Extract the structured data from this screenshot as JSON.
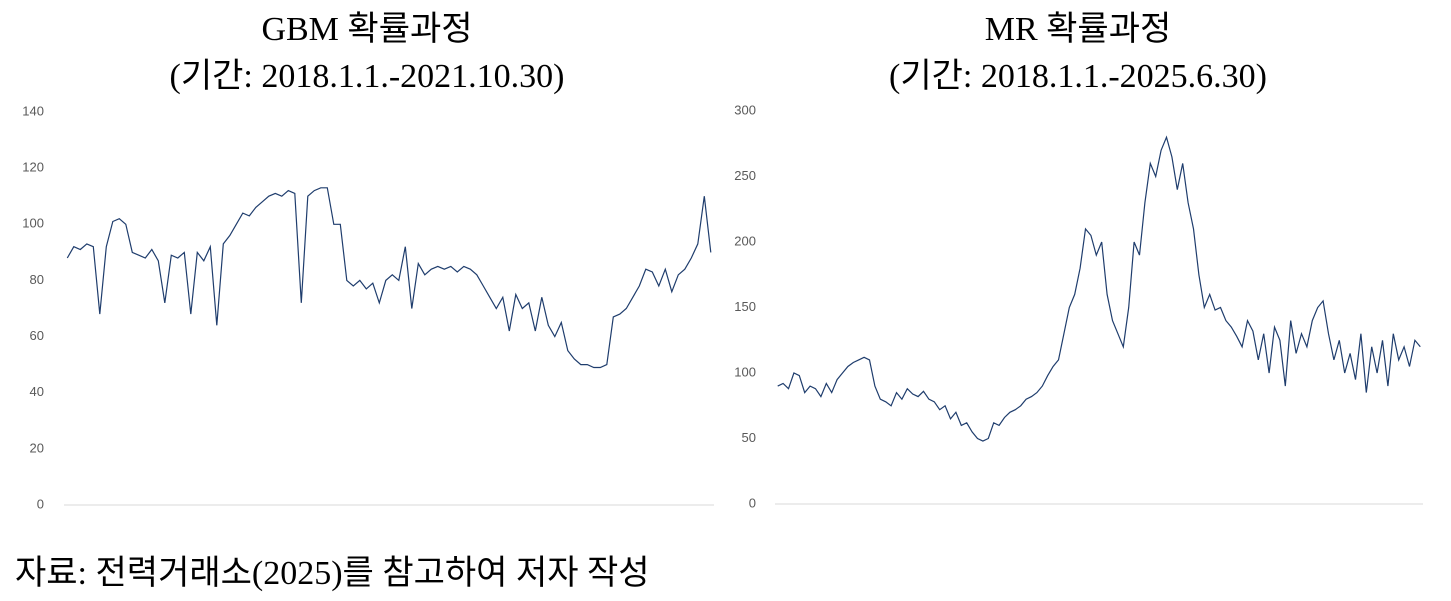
{
  "chart_data": [
    {
      "type": "line",
      "title": "GBM 확률과정",
      "subtitle": "(기간: 2018.1.1.-2021.10.30)",
      "ylim": [
        0,
        140
      ],
      "yticks": [
        0,
        20,
        40,
        60,
        80,
        100,
        120,
        140
      ],
      "series": [
        {
          "color": "#1f3d6d",
          "values": [
            88,
            92,
            91,
            93,
            92,
            68,
            92,
            101,
            102,
            100,
            90,
            89,
            88,
            91,
            87,
            72,
            89,
            88,
            90,
            68,
            90,
            87,
            92,
            64,
            93,
            96,
            100,
            104,
            103,
            106,
            108,
            110,
            111,
            110,
            112,
            111,
            72,
            110,
            112,
            113,
            113,
            100,
            100,
            80,
            78,
            80,
            77,
            79,
            72,
            80,
            82,
            80,
            92,
            70,
            86,
            82,
            84,
            85,
            84,
            85,
            83,
            85,
            84,
            82,
            78,
            74,
            70,
            74,
            62,
            75,
            70,
            72,
            62,
            74,
            64,
            60,
            65,
            55,
            52,
            50,
            50,
            49,
            49,
            50,
            67,
            68,
            70,
            74,
            78,
            84,
            83,
            78,
            84,
            76,
            82,
            84,
            88,
            93,
            110,
            90
          ]
        }
      ]
    },
    {
      "type": "line",
      "title": "MR 확률과정",
      "subtitle": "(기간: 2018.1.1.-2025.6.30)",
      "ylim": [
        0,
        300
      ],
      "yticks": [
        0,
        50,
        100,
        150,
        200,
        250,
        300
      ],
      "series": [
        {
          "color": "#1f3d6d",
          "values": [
            90,
            92,
            88,
            100,
            98,
            85,
            90,
            88,
            82,
            92,
            85,
            95,
            100,
            105,
            108,
            110,
            112,
            110,
            90,
            80,
            78,
            75,
            85,
            80,
            88,
            84,
            82,
            86,
            80,
            78,
            72,
            75,
            65,
            70,
            60,
            62,
            55,
            50,
            48,
            50,
            62,
            60,
            66,
            70,
            72,
            75,
            80,
            82,
            85,
            90,
            98,
            105,
            110,
            130,
            150,
            160,
            180,
            210,
            205,
            190,
            200,
            160,
            140,
            130,
            120,
            150,
            200,
            190,
            230,
            260,
            250,
            270,
            280,
            265,
            240,
            260,
            230,
            210,
            175,
            150,
            160,
            148,
            150,
            140,
            135,
            128,
            120,
            140,
            132,
            110,
            130,
            100,
            135,
            125,
            90,
            140,
            115,
            130,
            120,
            140,
            150,
            155,
            130,
            110,
            125,
            100,
            115,
            95,
            130,
            85,
            120,
            100,
            125,
            90,
            130,
            110,
            120,
            105,
            125,
            120
          ]
        }
      ]
    }
  ],
  "source": "자료: 전력거래소(2025)를 참고하여 저자 작성"
}
